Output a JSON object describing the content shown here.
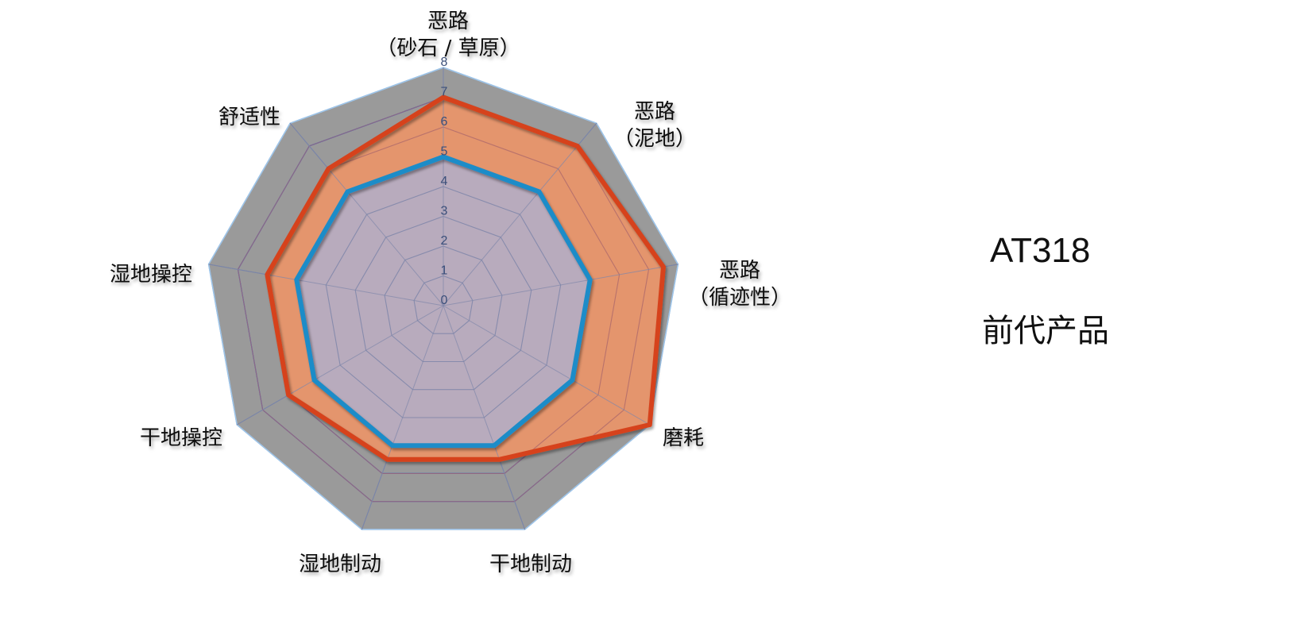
{
  "chart_data": {
    "type": "radar",
    "axes": [
      [
        "恶路",
        "（砂石 / 草原）"
      ],
      [
        "恶路",
        "（泥地）"
      ],
      [
        "恶路",
        "（循迹性）"
      ],
      [
        "磨耗"
      ],
      [
        "干地制动"
      ],
      [
        "湿地制动"
      ],
      [
        "干地操控"
      ],
      [
        "湿地操控"
      ],
      [
        "舒适性"
      ]
    ],
    "rlim": [
      0,
      8
    ],
    "ticks": [
      "0",
      "1",
      "2",
      "3",
      "4",
      "5",
      "6",
      "7",
      "8"
    ],
    "series": [
      {
        "name": "AT318",
        "color": "#d6431c",
        "fill": "#e8956a",
        "values": [
          7.0,
          7.0,
          7.5,
          8.0,
          5.5,
          5.5,
          6.0,
          6.0,
          6.0
        ]
      },
      {
        "name": "前代产品",
        "color": "#1e8cc8",
        "fill": "#b4acc4",
        "values": [
          5.0,
          5.0,
          5.0,
          5.0,
          5.0,
          5.0,
          5.0,
          5.0,
          5.0
        ]
      }
    ],
    "legend_position": "right",
    "colors": {
      "outer_band": "#9a9a9a",
      "grid_outer": "#1c5fd6",
      "grid_inner": "#6d7fa8",
      "border": "#9ec4e8"
    }
  }
}
